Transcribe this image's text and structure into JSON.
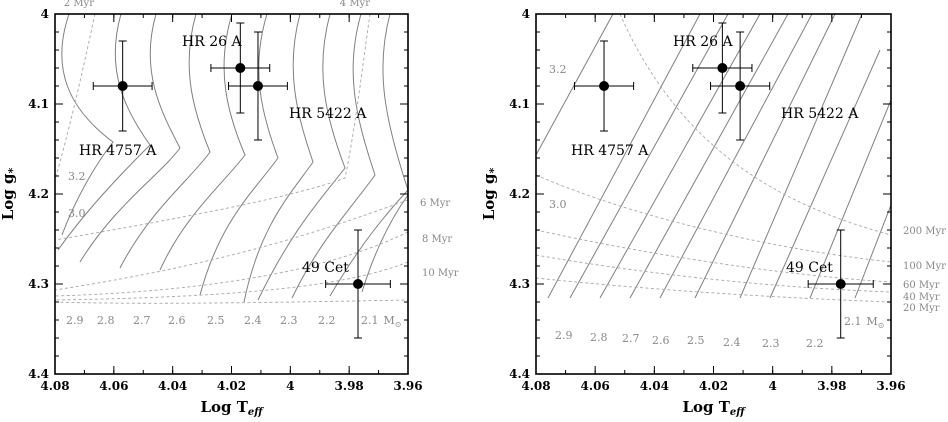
{
  "figure": {
    "xlabel": "Log T",
    "xlabel_sub": "eff",
    "ylabel": "Log g",
    "ylabel_sub": "*",
    "xlim": [
      4.08,
      3.96
    ],
    "ylim": [
      4.0,
      4.4
    ],
    "xticks": [
      "4.08",
      "4.06",
      "4.04",
      "4.02",
      "4",
      "3.98",
      "3.96"
    ],
    "yticks": [
      "4",
      "4.1",
      "4.2",
      "4.3",
      "4.4"
    ],
    "mass_unit": "M",
    "mass_unit_sub": "⊙"
  },
  "chart_data": [
    {
      "type": "scatter",
      "stars": [
        {
          "name": "HR 26 A",
          "x": 4.057,
          "y": 4.08,
          "xerr": 0.01,
          "yerr": 0.05
        },
        {
          "name": "HR 4757 A",
          "x": 4.017,
          "y": 4.06,
          "xerr": 0.01,
          "yerr": 0.05
        },
        {
          "name": "HR 5422 A",
          "x": 4.011,
          "y": 4.08,
          "xerr": 0.01,
          "yerr": 0.06
        },
        {
          "name": "49 Cet",
          "x": 3.977,
          "y": 4.3,
          "xerr": 0.011,
          "yerr": 0.06
        }
      ],
      "track_labels": [
        "3.2",
        "3.0",
        "2.9",
        "2.8",
        "2.7",
        "2.6",
        "2.5",
        "2.4",
        "2.3",
        "2.2",
        "2.1"
      ],
      "isochrone_labels": [
        "2 Myr",
        "4 Myr",
        "6 Myr",
        "8 Myr",
        "10 Myr"
      ]
    },
    {
      "type": "scatter",
      "stars": [
        {
          "name": "HR 26 A",
          "x": 4.057,
          "y": 4.08,
          "xerr": 0.01,
          "yerr": 0.05
        },
        {
          "name": "HR 4757 A",
          "x": 4.017,
          "y": 4.06,
          "xerr": 0.01,
          "yerr": 0.05
        },
        {
          "name": "HR 5422 A",
          "x": 4.011,
          "y": 4.08,
          "xerr": 0.01,
          "yerr": 0.06
        },
        {
          "name": "49 Cet",
          "x": 3.977,
          "y": 4.3,
          "xerr": 0.011,
          "yerr": 0.06
        }
      ],
      "track_labels": [
        "3.2",
        "3.0",
        "2.9",
        "2.8",
        "2.7",
        "2.6",
        "2.5",
        "2.4",
        "2.3",
        "2.2",
        "2.1"
      ],
      "isochrone_labels": [
        "200 Myr",
        "100 Myr",
        "60 Myr",
        "40 Myr",
        "20 Myr"
      ]
    }
  ]
}
